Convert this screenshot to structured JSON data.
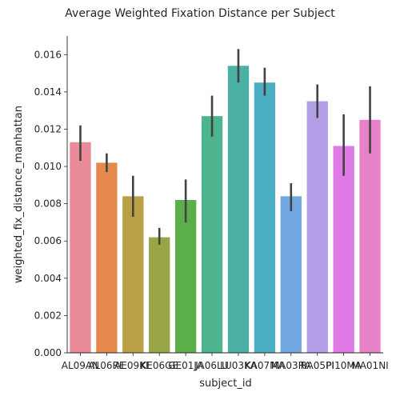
{
  "chart_data": {
    "type": "bar",
    "title": "Average Weighted Fixation Distance per Subject",
    "xlabel": "subject_id",
    "ylabel": "weighted_fix_distance_manhattan",
    "ylim": [
      0,
      0.017
    ],
    "yticks": [
      "0.000",
      "0.002",
      "0.004",
      "0.006",
      "0.008",
      "0.010",
      "0.012",
      "0.014",
      "0.016"
    ],
    "grid": false,
    "legend": "none",
    "categories": [
      "AL09AN",
      "AL06RE",
      "AE09KE",
      "KE06GE",
      "GE01JA",
      "JA06LU",
      "LU03KA",
      "KA07MA",
      "MA03RA",
      "RA05PI",
      "PI10MA",
      "MA01NI"
    ],
    "values": [
      0.0113,
      0.0102,
      0.0084,
      0.0062,
      0.0082,
      0.0127,
      0.0154,
      0.0145,
      0.0084,
      0.0135,
      0.0111,
      0.0125
    ],
    "error_low": [
      0.0103,
      0.0097,
      0.0073,
      0.0058,
      0.007,
      0.0116,
      0.0145,
      0.0138,
      0.0076,
      0.0126,
      0.0095,
      0.0107
    ],
    "error_high": [
      0.0122,
      0.0107,
      0.0095,
      0.0067,
      0.0093,
      0.0138,
      0.0163,
      0.0153,
      0.0091,
      0.0144,
      0.0128,
      0.0143
    ],
    "colors": [
      "#ea8b99",
      "#e5894c",
      "#b9a047",
      "#99a547",
      "#5cae4a",
      "#4db48e",
      "#4cb1a5",
      "#4caec3",
      "#72a8e1",
      "#b29ee7",
      "#e07ae6",
      "#e882c8"
    ],
    "error_color": "#424242"
  }
}
